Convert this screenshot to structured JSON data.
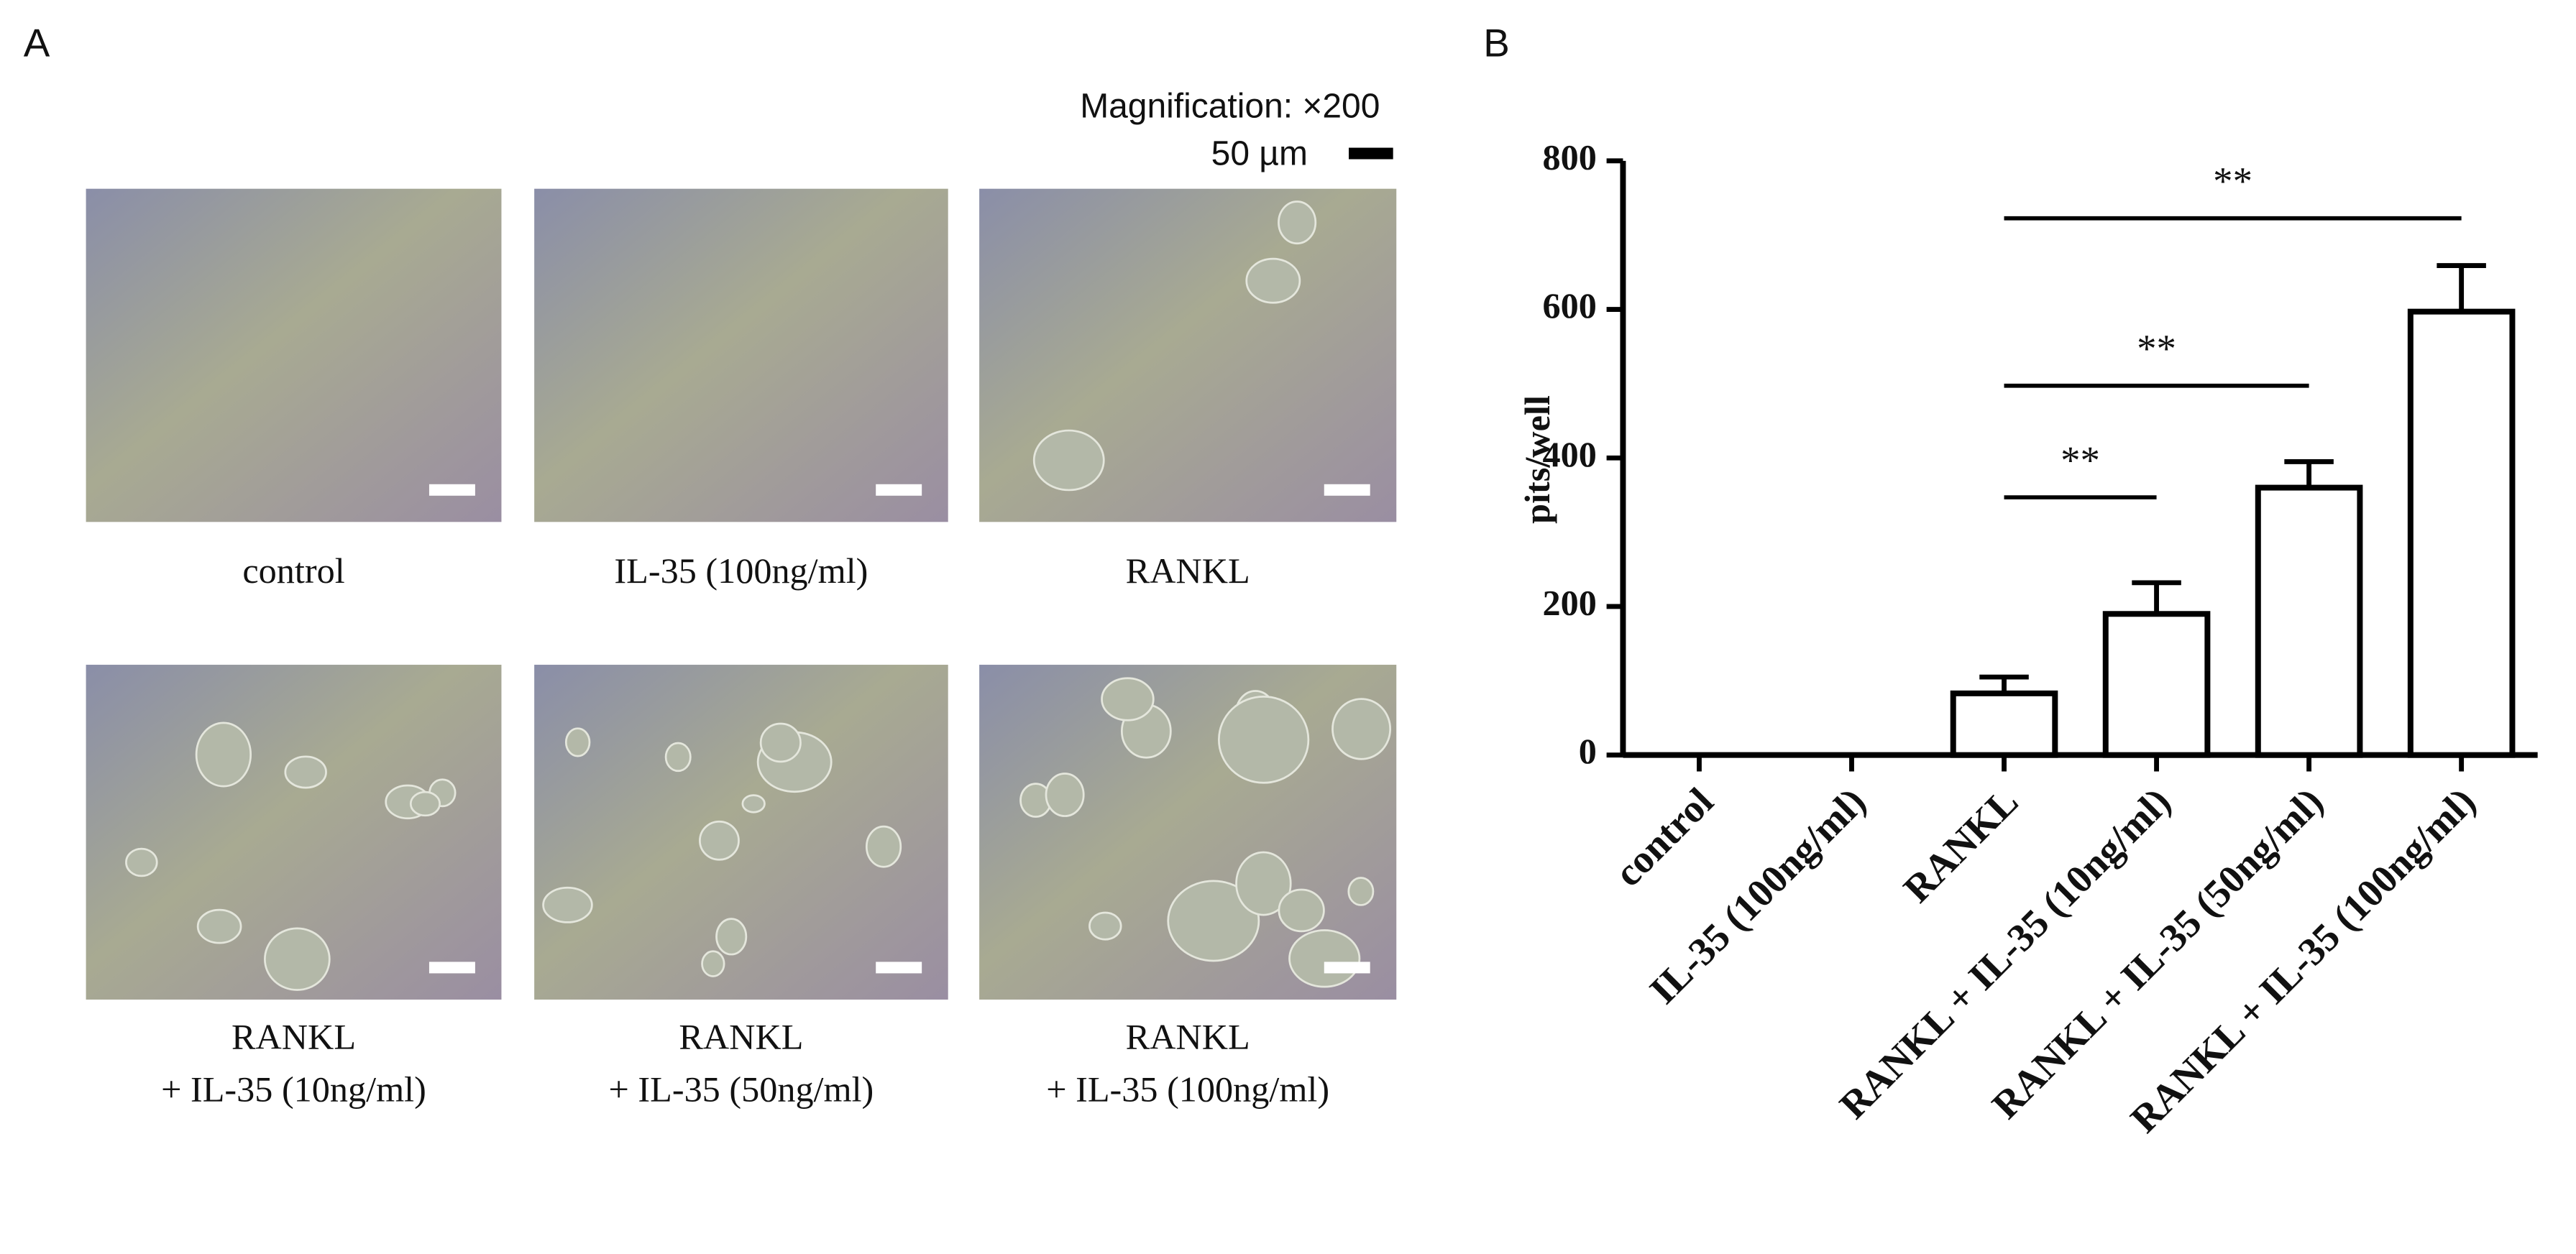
{
  "panel_a": {
    "label": "A",
    "magnification": "Magnification: ×200",
    "scale_bar": "50 µm",
    "captions": [
      [
        "control"
      ],
      [
        "IL-35 (100ng/ml)"
      ],
      [
        "RANKL"
      ],
      [
        "RANKL",
        "+ IL-35 (10ng/ml)"
      ],
      [
        "RANKL",
        "+ IL-35 (50ng/ml)"
      ],
      [
        "RANKL",
        "+ IL-35 (100ng/ml)"
      ]
    ]
  },
  "chart_data": {
    "type": "bar",
    "panel_label": "B",
    "y_label": "pits/well",
    "categories": [
      "control",
      "IL-35 (100ng/ml)",
      "RANKL",
      "RANKL + IL-35 (10ng/ml)",
      "RANKL + IL-35 (50ng/ml)",
      "RANKL + IL-35 (100ng/ml)"
    ],
    "values": [
      0,
      0,
      83,
      190,
      360,
      597
    ],
    "errors": [
      0,
      0,
      22,
      42,
      35,
      62
    ],
    "color": "#ffffff",
    "ylim": [
      0,
      800
    ],
    "yticks": [
      0,
      200,
      400,
      600,
      800
    ],
    "grid": false,
    "comparisons": [
      {
        "groups": [
          2,
          3
        ],
        "label": "**"
      },
      {
        "groups": [
          2,
          4
        ],
        "label": "**"
      },
      {
        "groups": [
          2,
          5
        ],
        "label": "**"
      }
    ]
  }
}
